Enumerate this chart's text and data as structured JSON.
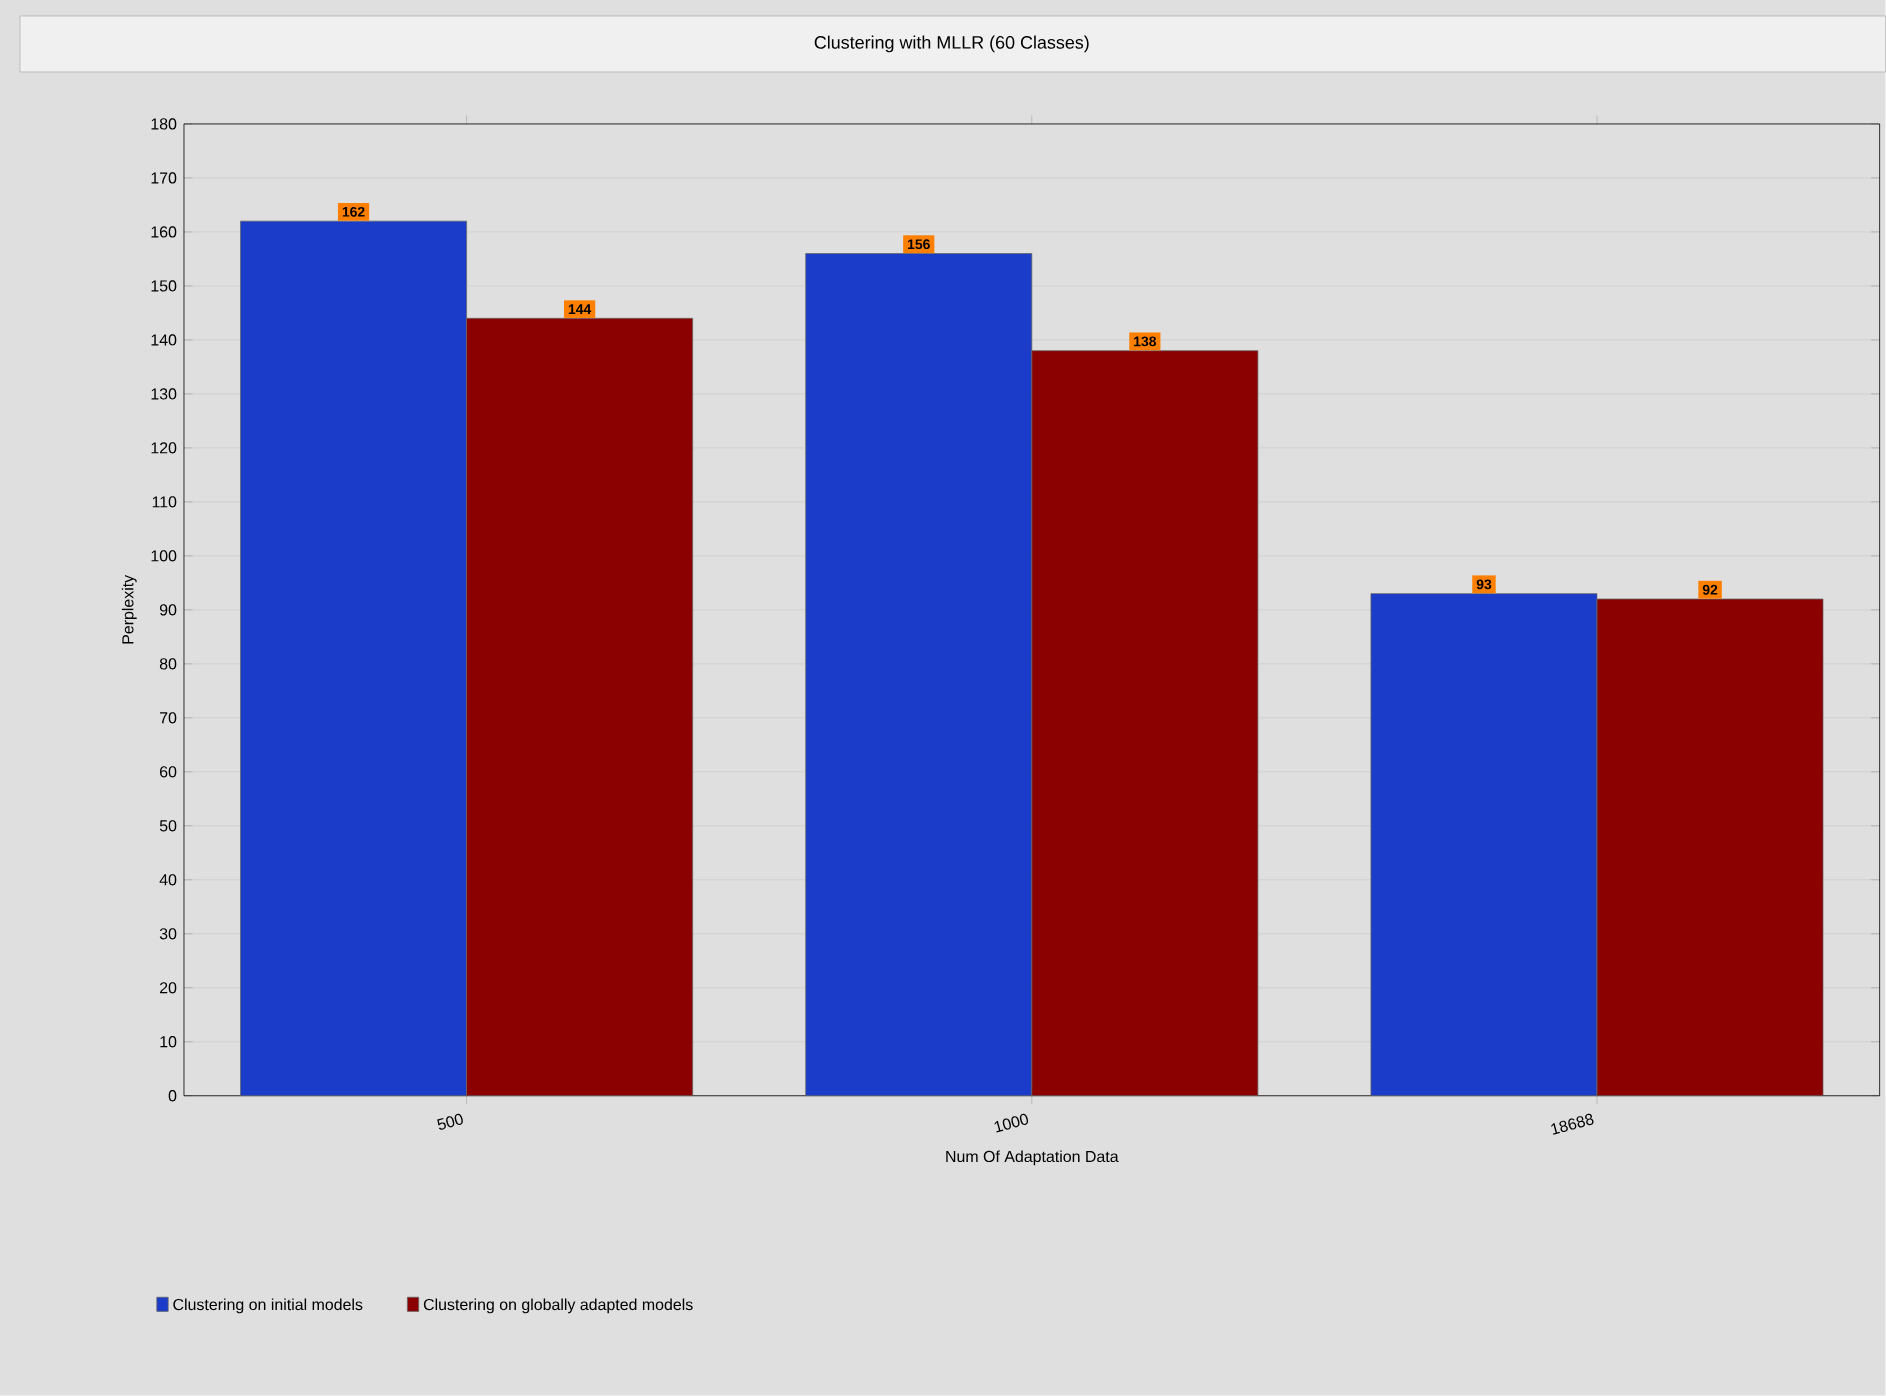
{
  "chart_data": {
    "type": "bar",
    "title": "Clustering with MLLR (60 Classes)",
    "xlabel": "Num Of Adaptation Data",
    "ylabel": "Perplexity",
    "categories": [
      "500",
      "1000",
      "18688"
    ],
    "series": [
      {
        "name": "Clustering on initial models",
        "color": "#1a3cc8",
        "values": [
          162,
          156,
          93
        ]
      },
      {
        "name": "Clustering on globally adapted models",
        "color": "#8b0000",
        "values": [
          144,
          138,
          92
        ]
      }
    ],
    "ylim": [
      0,
      180
    ],
    "yticks": [
      0,
      10,
      20,
      30,
      40,
      50,
      60,
      70,
      80,
      90,
      100,
      110,
      120,
      130,
      140,
      150,
      160,
      170,
      180
    ],
    "grid": "y",
    "legend": "bottom left",
    "data_labels": true
  }
}
